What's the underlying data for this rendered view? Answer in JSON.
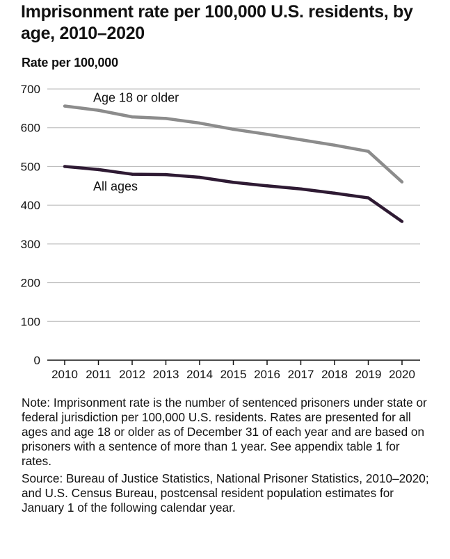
{
  "chart_data": {
    "type": "line",
    "title": "Imprisonment rate per 100,000 U.S. residents, by age, 2010–2020",
    "ylabel": "Rate per 100,000",
    "xlabel": "",
    "x": [
      "2010",
      "2011",
      "2012",
      "2013",
      "2014",
      "2015",
      "2016",
      "2017",
      "2018",
      "2019",
      "2020"
    ],
    "ylim": [
      0,
      700
    ],
    "yticks": [
      0,
      100,
      200,
      300,
      400,
      500,
      600,
      700
    ],
    "grid": true,
    "series": [
      {
        "name": "Age 18 or older",
        "color": "#8c8c8c",
        "values": [
          656,
          645,
          628,
          624,
          612,
          596,
          583,
          569,
          555,
          539,
          460
        ]
      },
      {
        "name": "All ages",
        "color": "#2e1a33",
        "values": [
          500,
          492,
          480,
          479,
          472,
          459,
          450,
          442,
          431,
          419,
          358
        ]
      }
    ]
  },
  "notes": {
    "note": "Note: Imprisonment rate is the number of sentenced prisoners under state or federal jurisdiction per 100,000 U.S. residents. Rates are presented for all ages and age 18 or older as of December 31 of each year and are based on prisoners with a sentence of more than 1 year. See appendix table 1 for rates.",
    "source": "Source: Bureau of Justice Statistics, National Prisoner Statistics, 2010–2020; and U.S. Census Bureau, postcensal resident population estimates for January 1 of the following calendar year."
  }
}
